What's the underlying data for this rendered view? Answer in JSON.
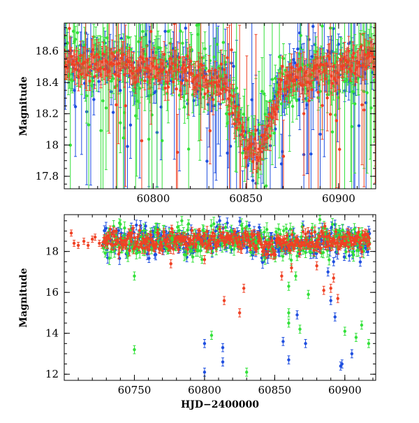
{
  "colors": {
    "blue": "#1f4fe0",
    "green": "#33e13a",
    "red": "#f04124",
    "axis": "#000000"
  },
  "chart_data": [
    {
      "type": "scatter",
      "panel": "top",
      "xlabel": "",
      "ylabel": "Magnitude",
      "xlim": [
        60752,
        60920
      ],
      "ylim": [
        18.78,
        17.72
      ],
      "y_inverted": true,
      "grid": false,
      "xticks": [
        {
          "value": 60800,
          "label": "60800"
        },
        {
          "value": 60850,
          "label": "60850"
        },
        {
          "value": 60900,
          "label": "60900"
        }
      ],
      "yticks": [
        {
          "value": 17.8,
          "label": "17.8"
        },
        {
          "value": 18.0,
          "label": "18"
        },
        {
          "value": 18.2,
          "label": "18.2"
        },
        {
          "value": 18.4,
          "label": "18.4"
        },
        {
          "value": 18.6,
          "label": "18.6"
        }
      ],
      "trend": [
        [
          60752,
          18.55
        ],
        [
          60760,
          18.52
        ],
        [
          60770,
          18.53
        ],
        [
          60780,
          18.52
        ],
        [
          60790,
          18.5
        ],
        [
          60800,
          18.5
        ],
        [
          60808,
          18.49
        ],
        [
          60815,
          18.46
        ],
        [
          60822,
          18.45
        ],
        [
          60830,
          18.42
        ],
        [
          60838,
          18.38
        ],
        [
          60843,
          18.25
        ],
        [
          60847,
          18.1
        ],
        [
          60850,
          18.02
        ],
        [
          60853,
          17.98
        ],
        [
          60856,
          17.96
        ],
        [
          60859,
          18.02
        ],
        [
          60862,
          18.1
        ],
        [
          60866,
          18.25
        ],
        [
          60870,
          18.4
        ],
        [
          60876,
          18.45
        ],
        [
          60884,
          18.45
        ],
        [
          60892,
          18.48
        ],
        [
          60900,
          18.47
        ],
        [
          60908,
          18.52
        ],
        [
          60916,
          18.57
        ]
      ],
      "series": [
        {
          "color": "blue",
          "scatter": 0.09,
          "err": 0.06,
          "outlier_frac": 0.22
        },
        {
          "color": "green",
          "scatter": 0.1,
          "err": 0.07,
          "outlier_frac": 0.2
        },
        {
          "color": "red",
          "scatter": 0.05,
          "err": 0.05,
          "outlier_frac": 0.1
        }
      ]
    },
    {
      "type": "scatter",
      "panel": "bottom",
      "xlabel": "HJD−2400000",
      "ylabel": "Magnitude",
      "xlim": [
        60700,
        60922
      ],
      "ylim": [
        19.8,
        11.7
      ],
      "y_inverted": true,
      "grid": false,
      "xticks": [
        {
          "value": 60750,
          "label": "60750"
        },
        {
          "value": 60800,
          "label": "60800"
        },
        {
          "value": 60850,
          "label": "60850"
        },
        {
          "value": 60900,
          "label": "60900"
        }
      ],
      "yticks": [
        {
          "value": 12,
          "label": "12"
        },
        {
          "value": 14,
          "label": "14"
        },
        {
          "value": 16,
          "label": "16"
        },
        {
          "value": 18,
          "label": "18"
        }
      ],
      "early_red": [
        [
          60705,
          18.9
        ],
        [
          60707,
          18.4
        ],
        [
          60710,
          18.3
        ],
        [
          60714,
          18.5
        ],
        [
          60717,
          18.3
        ],
        [
          60720,
          18.6
        ],
        [
          60722,
          18.7
        ],
        [
          60725,
          18.4
        ],
        [
          60727,
          18.3
        ]
      ],
      "outliers": {
        "blue": [
          [
            60800,
            12.1
          ],
          [
            60800,
            13.5
          ],
          [
            60813,
            12.6
          ],
          [
            60813,
            13.3
          ],
          [
            60856,
            13.6
          ],
          [
            60860,
            12.7
          ],
          [
            60866,
            14.9
          ],
          [
            60872,
            13.5
          ],
          [
            60890,
            15.6
          ],
          [
            60893,
            14.8
          ],
          [
            60898,
            12.5
          ],
          [
            60897,
            12.4
          ],
          [
            60905,
            13.0
          ],
          [
            60888,
            17.0
          ],
          [
            60892,
            17.5
          ]
        ],
        "green": [
          [
            60750,
            13.2
          ],
          [
            60750,
            16.8
          ],
          [
            60805,
            13.9
          ],
          [
            60830,
            12.1
          ],
          [
            60860,
            14.5
          ],
          [
            60860,
            15.0
          ],
          [
            60868,
            14.2
          ],
          [
            60874,
            15.9
          ],
          [
            60900,
            14.1
          ],
          [
            60908,
            13.8
          ],
          [
            60912,
            14.4
          ],
          [
            60917,
            13.5
          ],
          [
            60860,
            16.3
          ],
          [
            60865,
            16.8
          ]
        ],
        "red": [
          [
            60825,
            15.0
          ],
          [
            60814,
            15.6
          ],
          [
            60828,
            16.2
          ],
          [
            60885,
            16.1
          ],
          [
            60890,
            16.2
          ],
          [
            60895,
            15.7
          ],
          [
            60892,
            16.7
          ],
          [
            60855,
            16.8
          ],
          [
            60862,
            17.2
          ],
          [
            60880,
            17.3
          ],
          [
            60776,
            17.4
          ],
          [
            60800,
            17.6
          ]
        ]
      },
      "series": [
        {
          "color": "blue",
          "scatter": 0.35,
          "err": 0.15
        },
        {
          "color": "green",
          "scatter": 0.4,
          "err": 0.18
        },
        {
          "color": "red",
          "scatter": 0.25,
          "err": 0.12
        }
      ]
    }
  ]
}
